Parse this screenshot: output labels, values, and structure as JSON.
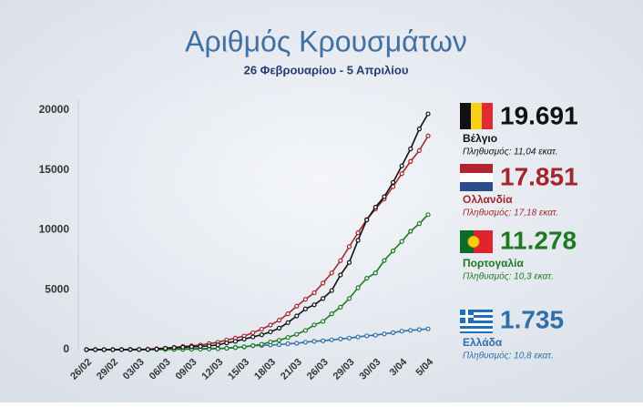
{
  "chart_data": {
    "type": "line",
    "title": "Αριθμός Κρουσμάτων",
    "subtitle": "26 Φεβρουαρίου - 5 Απριλίου",
    "categories": [
      "26/02",
      null,
      null,
      "29/02",
      null,
      null,
      "03/03",
      null,
      null,
      "06/03",
      null,
      null,
      "09/03",
      null,
      null,
      "12/03",
      null,
      null,
      "15/03",
      null,
      null,
      "18/03",
      null,
      null,
      "21/03",
      null,
      null,
      "26/03",
      null,
      null,
      "29/03",
      null,
      null,
      "30/03",
      null,
      null,
      "3/04",
      null,
      null,
      "5/04"
    ],
    "ylim": [
      0,
      20000
    ],
    "yticks": [
      0,
      5000,
      10000,
      15000,
      20000
    ],
    "grid": false,
    "series": [
      {
        "name": "Βέλγιο",
        "color": "#111111",
        "total": "19.691",
        "population": "Πληθυσμός: 11,04 εκατ.",
        "values": [
          1,
          1,
          1,
          1,
          2,
          8,
          13,
          23,
          50,
          109,
          169,
          200,
          239,
          267,
          314,
          399,
          559,
          689,
          886,
          1058,
          1243,
          1486,
          1795,
          2257,
          2815,
          3401,
          3743,
          4269,
          4937,
          6235,
          7284,
          9134,
          10836,
          11899,
          12775,
          13964,
          15348,
          16770,
          18431,
          19691
        ]
      },
      {
        "name": "Ολλανδία",
        "color": "#a3262e",
        "total": "17.851",
        "population": "Πληθυσμός: 17,18 εκατ.",
        "values": [
          0,
          1,
          1,
          6,
          10,
          18,
          24,
          38,
          82,
          128,
          188,
          265,
          321,
          382,
          503,
          614,
          804,
          959,
          1135,
          1413,
          1705,
          2051,
          2460,
          2994,
          3631,
          4204,
          4749,
          5560,
          6412,
          7431,
          8603,
          9762,
          10866,
          11750,
          12595,
          13614,
          14697,
          15723,
          16627,
          17851
        ]
      },
      {
        "name": "Πορτογαλία",
        "color": "#1d7a22",
        "total": "11.278",
        "population": "Πληθυσμός: 10,3 εκατ.",
        "values": [
          0,
          0,
          0,
          0,
          0,
          2,
          2,
          4,
          6,
          13,
          21,
          30,
          39,
          41,
          59,
          78,
          112,
          169,
          245,
          331,
          448,
          642,
          785,
          1020,
          1280,
          1600,
          2060,
          2362,
          2995,
          3544,
          4268,
          5170,
          5962,
          6408,
          7443,
          8251,
          9034,
          9886,
          10524,
          11278
        ]
      },
      {
        "name": "Ελλάδα",
        "color": "#2f6ea8",
        "total": "1.735",
        "population": "Πληθυσμός: 10,8 εκατ.",
        "values": [
          1,
          3,
          4,
          7,
          7,
          7,
          7,
          9,
          31,
          45,
          46,
          66,
          73,
          84,
          89,
          99,
          117,
          190,
          228,
          331,
          352,
          387,
          418,
          495,
          530,
          624,
          695,
          743,
          821,
          892,
          966,
          1061,
          1156,
          1212,
          1314,
          1415,
          1544,
          1613,
          1673,
          1735
        ]
      }
    ]
  }
}
